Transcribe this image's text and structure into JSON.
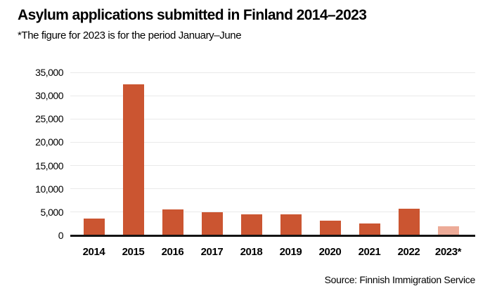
{
  "header": {
    "title": "Asylum applications submitted in Finland 2014–2023",
    "subtitle": "*The figure for 2023 is for the period January–June"
  },
  "footer": {
    "source": "Source: Finnish Immigration Service"
  },
  "colors": {
    "bar": "#cb5531",
    "bar_highlight": "#edab98",
    "gridline": "#e9e9e9",
    "axis": "#141414",
    "text": "#000000",
    "background": "#ffffff"
  },
  "chart_data": {
    "type": "bar",
    "title": "Asylum applications submitted in Finland 2014–2023",
    "subtitle": "*The figure for 2023 is for the period January–June",
    "categories": [
      "2014",
      "2015",
      "2016",
      "2017",
      "2018",
      "2019",
      "2020",
      "2021",
      "2022",
      "2023*"
    ],
    "values": [
      3650,
      32500,
      5650,
      5050,
      4550,
      4550,
      3200,
      2550,
      5800,
      2000
    ],
    "highlighted_category": "2023*",
    "highlight_note": "2023* bar shown in lighter shade; figure covers January–June only",
    "xlabel": "",
    "ylabel": "",
    "ylim": [
      0,
      35000
    ],
    "ytick_step": 5000,
    "ytick_labels": [
      "0",
      "5,000",
      "10,000",
      "15,000",
      "20,000",
      "25,000",
      "30,000",
      "35,000"
    ],
    "grid": "horizontal-only",
    "legend": "none"
  }
}
